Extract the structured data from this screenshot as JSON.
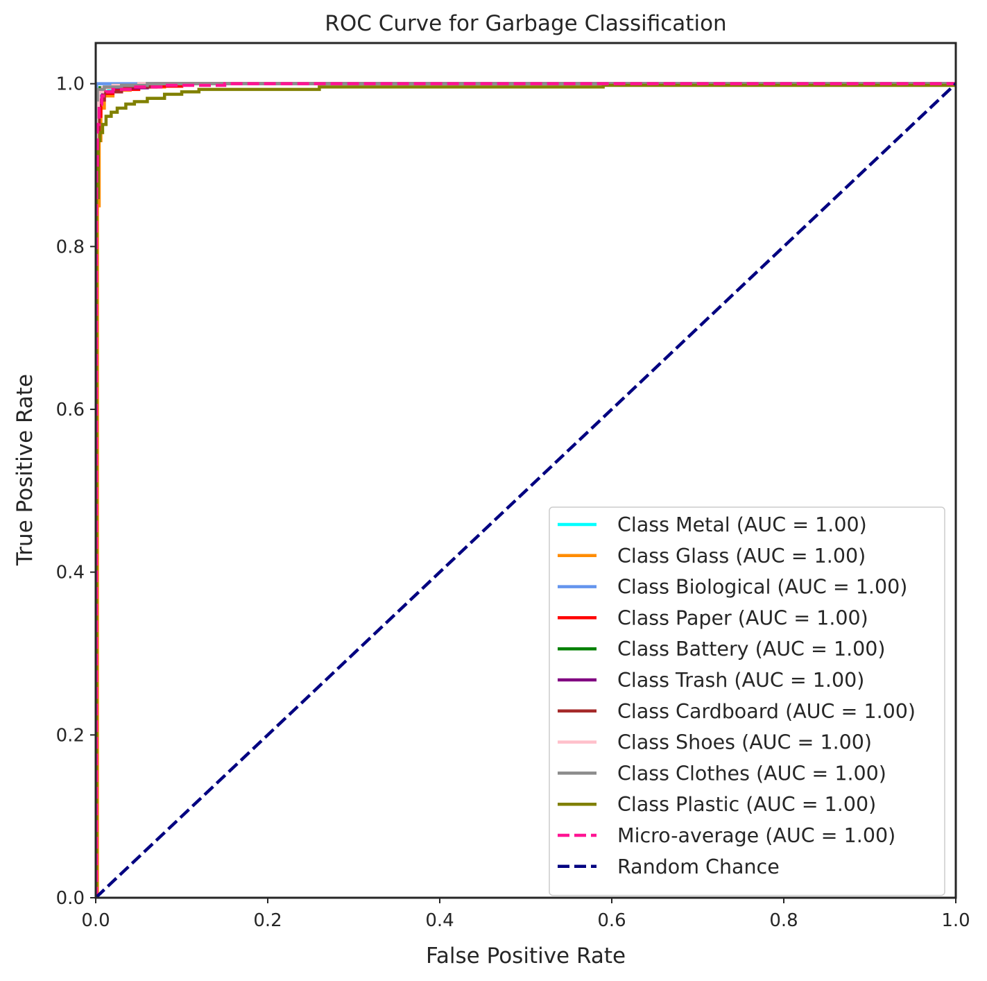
{
  "chart_data": {
    "type": "line",
    "title": "ROC Curve for Garbage Classification",
    "xlabel": "False Positive Rate",
    "ylabel": "True Positive Rate",
    "xlim": [
      0.0,
      1.0
    ],
    "ylim": [
      0.0,
      1.05
    ],
    "xticks": [
      "0.0",
      "0.2",
      "0.4",
      "0.6",
      "0.8",
      "1.0"
    ],
    "yticks": [
      "0.0",
      "0.2",
      "0.4",
      "0.6",
      "0.8",
      "1.0"
    ],
    "xtick_values": [
      0.0,
      0.2,
      0.4,
      0.6,
      0.8,
      1.0
    ],
    "ytick_values": [
      0.0,
      0.2,
      0.4,
      0.6,
      0.8,
      1.0
    ],
    "grid": false,
    "legend_position": "lower-right",
    "series": [
      {
        "name": "Class Metal (AUC = 1.00)",
        "color": "#00ffff",
        "dash": "solid",
        "x": [
          0,
          0.001,
          0.003,
          0.008,
          0.015,
          0.03,
          0.06,
          1.0
        ],
        "y": [
          0,
          0.96,
          0.985,
          0.99,
          0.992,
          0.996,
          1.0,
          1.0
        ]
      },
      {
        "name": "Class Glass (AUC = 1.00)",
        "color": "#ff8c00",
        "dash": "solid",
        "x": [
          0,
          0.002,
          0.004,
          0.006,
          0.01,
          0.02,
          0.04,
          0.08,
          1.0
        ],
        "y": [
          0,
          0.85,
          0.93,
          0.97,
          0.985,
          0.992,
          0.996,
          1.0,
          1.0
        ]
      },
      {
        "name": "Class Biological (AUC = 1.00)",
        "color": "#6495ed",
        "dash": "solid",
        "x": [
          0,
          0.0,
          0.001,
          0.021,
          1.0
        ],
        "y": [
          0,
          0.99,
          1.0,
          1.0,
          1.0
        ]
      },
      {
        "name": "Class Paper (AUC = 1.00)",
        "color": "#ff0000",
        "dash": "solid",
        "x": [
          0,
          0.001,
          0.003,
          0.006,
          0.01,
          0.02,
          0.05,
          0.1,
          1.0
        ],
        "y": [
          0,
          0.9,
          0.96,
          0.98,
          0.988,
          0.993,
          0.997,
          1.0,
          1.0
        ]
      },
      {
        "name": "Class Battery (AUC = 1.00)",
        "color": "#008000",
        "dash": "solid",
        "x": [
          0,
          0.0,
          0.001,
          0.005,
          0.02,
          0.05,
          1.0
        ],
        "y": [
          0,
          0.97,
          0.99,
          0.995,
          0.998,
          1.0,
          1.0
        ]
      },
      {
        "name": "Class Trash (AUC = 1.00)",
        "color": "#800080",
        "dash": "solid",
        "x": [
          0,
          0.001,
          0.003,
          0.008,
          0.02,
          0.06,
          1.0
        ],
        "y": [
          0,
          0.95,
          0.98,
          0.99,
          0.995,
          1.0,
          1.0
        ]
      },
      {
        "name": "Class Cardboard (AUC = 1.00)",
        "color": "#a52a2a",
        "dash": "solid",
        "x": [
          0,
          0.001,
          0.004,
          0.01,
          0.03,
          0.07,
          1.0
        ],
        "y": [
          0,
          0.94,
          0.98,
          0.99,
          0.996,
          1.0,
          1.0
        ]
      },
      {
        "name": "Class Shoes (AUC = 1.00)",
        "color": "#ffc0cb",
        "dash": "solid",
        "x": [
          0,
          0.001,
          0.003,
          0.008,
          0.02,
          0.05,
          1.0
        ],
        "y": [
          0,
          0.97,
          0.99,
          0.995,
          0.998,
          1.0,
          1.0
        ]
      },
      {
        "name": "Class Clothes (AUC = 1.00)",
        "color": "#8c8c8c",
        "dash": "solid",
        "x": [
          0,
          0.0,
          0.002,
          0.01,
          0.03,
          0.06,
          1.0
        ],
        "y": [
          0,
          0.98,
          0.993,
          0.996,
          0.998,
          1.0,
          1.0
        ]
      },
      {
        "name": "Class Plastic (AUC = 1.00)",
        "color": "#808000",
        "dash": "solid",
        "x": [
          0,
          0.001,
          0.003,
          0.005,
          0.008,
          0.012,
          0.018,
          0.025,
          0.035,
          0.045,
          0.06,
          0.08,
          0.1,
          0.12,
          0.26,
          0.59,
          1.0
        ],
        "y": [
          0,
          0.86,
          0.93,
          0.94,
          0.95,
          0.96,
          0.965,
          0.97,
          0.975,
          0.978,
          0.982,
          0.987,
          0.99,
          0.993,
          0.996,
          0.998,
          1.0
        ]
      },
      {
        "name": "Micro-average (AUC = 1.00)",
        "color": "#ff1493",
        "dash": "dashed",
        "x": [
          0,
          0.001,
          0.002,
          0.004,
          0.007,
          0.012,
          0.02,
          0.04,
          0.08,
          0.15,
          1.0
        ],
        "y": [
          0,
          0.9,
          0.95,
          0.975,
          0.985,
          0.99,
          0.993,
          0.996,
          0.998,
          1.0,
          1.0
        ]
      },
      {
        "name": "Random Chance",
        "color": "#000080",
        "dash": "dashed",
        "x": [
          0,
          1
        ],
        "y": [
          0,
          1
        ]
      }
    ]
  }
}
